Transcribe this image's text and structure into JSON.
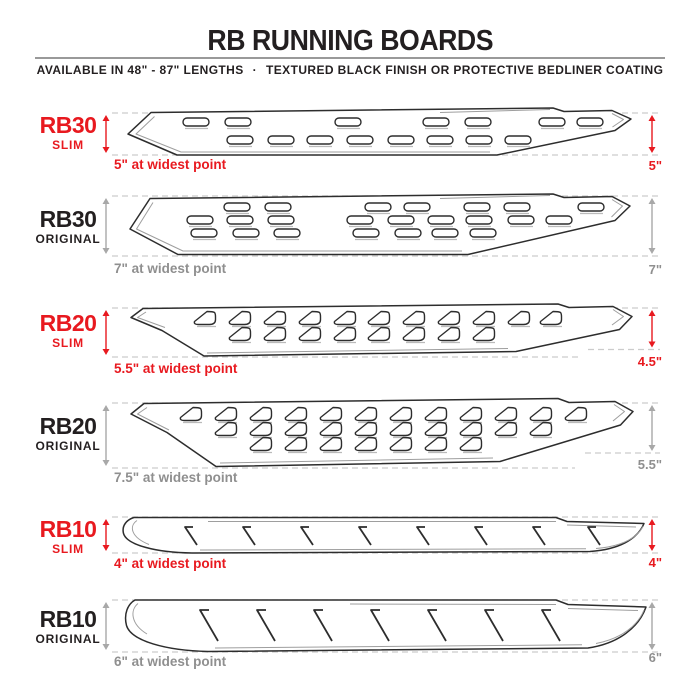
{
  "header": {
    "title": "RB RUNNING BOARDS",
    "subtitle_left": "AVAILABLE IN 48\" - 87\" LENGTHS",
    "subtitle_separator": "·",
    "subtitle_right": "TEXTURED BLACK FINISH OR PROTECTIVE BEDLINER COATING"
  },
  "colors": {
    "accent_red": "#e8191f",
    "ink": "#231f20",
    "gray_text": "#8f8f8f",
    "gray_arrow": "#a8a8a8",
    "dash_line": "#cccccc",
    "outline": "#2d2d2d",
    "accent_line": "#9e9e9e",
    "shadow": "#bababa",
    "divider": "#999999"
  },
  "rows": [
    {
      "model": "RB30",
      "variant": "SLIM",
      "accent": "red",
      "widest_label": "5\" at widest point",
      "right_label": "5\"",
      "hole_style": "oval-slots"
    },
    {
      "model": "RB30",
      "variant": "ORIGINAL",
      "accent": "black",
      "widest_label": "7\" at widest point",
      "right_label": "7\"",
      "hole_style": "oval-slots"
    },
    {
      "model": "RB20",
      "variant": "SLIM",
      "accent": "red",
      "widest_label": "5.5\" at widest point",
      "right_label": "4.5\"",
      "hole_style": "d-holes"
    },
    {
      "model": "RB20",
      "variant": "ORIGINAL",
      "accent": "black",
      "widest_label": "7.5\" at widest point",
      "right_label": "5.5\"",
      "hole_style": "d-holes"
    },
    {
      "model": "RB10",
      "variant": "SLIM",
      "accent": "red",
      "widest_label": "4\" at widest point",
      "right_label": "4\"",
      "hole_style": "hash-marks"
    },
    {
      "model": "RB10",
      "variant": "ORIGINAL",
      "accent": "black",
      "widest_label": "6\" at widest point",
      "right_label": "6\"",
      "hole_style": "hash-marks"
    }
  ]
}
